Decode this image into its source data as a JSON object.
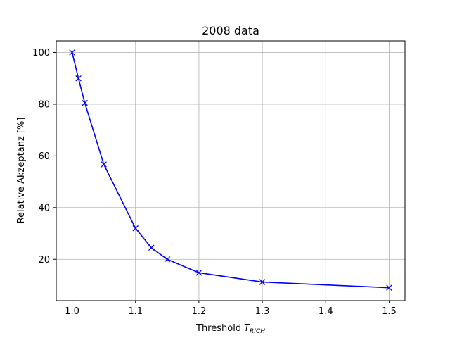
{
  "chart_data": {
    "type": "line",
    "title": "2008 data",
    "xlabel": "Threshold",
    "xlabel_symbol": "T",
    "xlabel_subscript": "RICH",
    "ylabel": "Relative Akzeptanz [%]",
    "x": [
      1.0,
      1.01,
      1.02,
      1.05,
      1.1,
      1.125,
      1.15,
      1.2,
      1.3,
      1.5
    ],
    "series": [
      {
        "values": [
          100,
          90,
          80.5,
          56.7,
          32,
          24.5,
          20,
          14.8,
          11.2,
          9
        ]
      }
    ],
    "xlim": [
      0.975,
      1.525
    ],
    "ylim": [
      4,
      104.5
    ],
    "xticks": [
      1.0,
      1.1,
      1.2,
      1.3,
      1.4,
      1.5
    ],
    "xtick_labels": [
      "1.0",
      "1.1",
      "1.2",
      "1.3",
      "1.4",
      "1.5"
    ],
    "yticks": [
      20,
      40,
      60,
      80,
      100
    ],
    "ytick_labels": [
      "20",
      "40",
      "60",
      "80",
      "100"
    ],
    "grid": true,
    "line_color": "#0000ff",
    "marker": "x"
  }
}
